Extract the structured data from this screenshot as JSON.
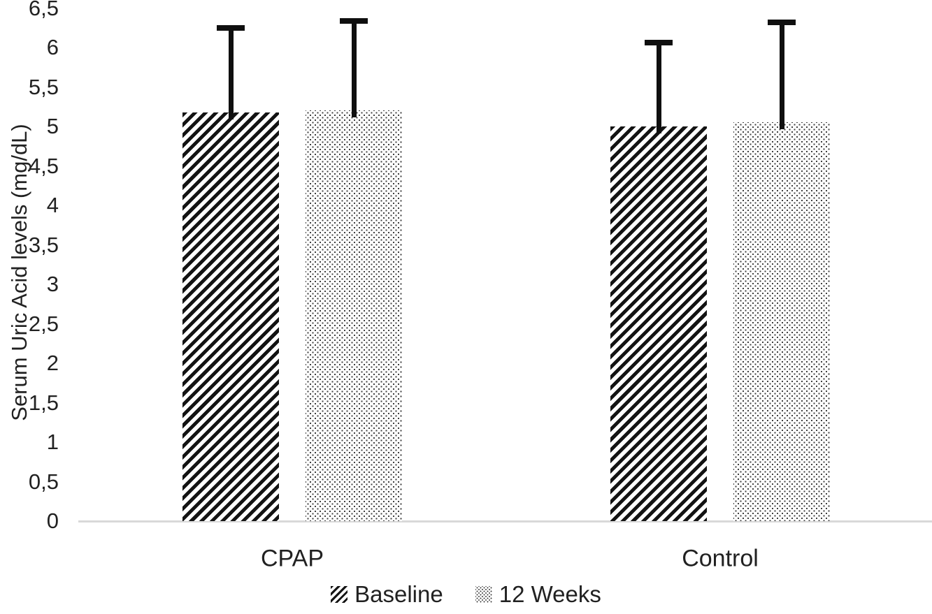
{
  "colors": {
    "background": "#ffffff",
    "text": "#212121",
    "axis_line": "#d9d9d9",
    "bar_pattern_black": "#131313",
    "error_bar": "#0f0f0f"
  },
  "chart_data": {
    "type": "bar",
    "title": "",
    "xlabel": "",
    "ylabel": "Serum Uric Acid levels (mg/dL)",
    "categories": [
      "CPAP",
      "Control"
    ],
    "series": [
      {
        "name": "Baseline",
        "fill_pattern": "diagonal-hatch",
        "values": [
          5.18,
          5.0
        ],
        "error_plus": [
          1.1,
          1.1
        ]
      },
      {
        "name": "12 Weeks",
        "fill_pattern": "dots",
        "values": [
          5.2,
          5.05
        ],
        "error_plus": [
          1.17,
          1.3
        ]
      }
    ],
    "ylim": [
      0,
      6.5
    ],
    "ytick_interval": 0.5,
    "ytick_labels": [
      "0",
      "0,5",
      "1",
      "1,5",
      "2",
      "2,5",
      "3",
      "3,5",
      "4",
      "4,5",
      "5",
      "5,5",
      "6",
      "6,5"
    ],
    "decimal_separator": ",",
    "grid": false,
    "error_bars": "plus-only",
    "legend_position": "bottom-center"
  }
}
